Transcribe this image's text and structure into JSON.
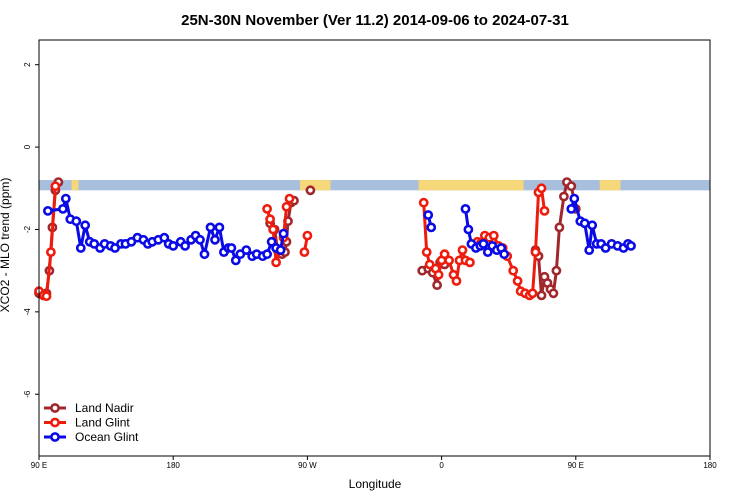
{
  "chart_data": {
    "type": "line",
    "title": "25N-30N November (Ver 11.2)   2014-09-06 to 2024-07-31",
    "xlabel": "Longitude",
    "ylabel": "XCO2 - MLO trend (ppm)",
    "xlim": [
      90,
      540
    ],
    "ylim": [
      -7.5,
      2.6
    ],
    "x_ticks": [
      {
        "value": 90,
        "label": "90 E"
      },
      {
        "value": 180,
        "label": "180"
      },
      {
        "value": 270,
        "label": "90 W"
      },
      {
        "value": 360,
        "label": "0"
      },
      {
        "value": 450,
        "label": "90 E"
      },
      {
        "value": 540,
        "label": "180"
      }
    ],
    "y_ticks": [
      {
        "value": 2,
        "label": "2"
      },
      {
        "value": 0,
        "label": "0"
      },
      {
        "value": -2,
        "label": "-2"
      },
      {
        "value": -4,
        "label": "-4"
      },
      {
        "value": -6,
        "label": "-6"
      }
    ],
    "land_mask": {
      "y_top": -0.8,
      "y_bottom": -1.05,
      "ocean_color": "#a7bedd",
      "land_color": "#f6d77a",
      "land_ranges": [
        [
          111.8,
          116.5
        ],
        [
          265,
          278
        ],
        [
          277,
          285.5
        ],
        [
          344.5,
          415
        ],
        [
          409,
          413
        ],
        [
          466,
          480
        ]
      ]
    },
    "series": [
      {
        "name": "Land Nadir",
        "color": "#a0282d",
        "segments": [
          [
            [
              90,
              -3.55
            ],
            [
              93,
              -3.6
            ],
            [
              95,
              -3.55
            ],
            [
              97,
              -3.0
            ],
            [
              99,
              -1.95
            ],
            [
              101,
              -1.05
            ],
            [
              103,
              -0.85
            ]
          ],
          [
            [
              245,
              -1.85
            ],
            [
              248,
              -2.0
            ],
            [
              250,
              -2.5
            ],
            [
              253,
              -2.6
            ],
            [
              255,
              -2.55
            ],
            [
              256,
              -2.3
            ],
            [
              257,
              -1.8
            ],
            [
              259,
              -1.35
            ],
            [
              261,
              -1.3
            ]
          ],
          [
            [
              272,
              -1.05
            ]
          ],
          [
            [
              347,
              -3.0
            ],
            [
              351,
              -2.95
            ],
            [
              354,
              -3.05
            ],
            [
              357,
              -3.35
            ],
            [
              359,
              -2.8
            ],
            [
              362,
              -2.85
            ]
          ],
          [
            [
              423,
              -2.5
            ],
            [
              425,
              -2.65
            ],
            [
              427,
              -3.6
            ],
            [
              429,
              -3.15
            ],
            [
              431,
              -3.3
            ],
            [
              433,
              -3.45
            ],
            [
              435,
              -3.55
            ],
            [
              437,
              -3.0
            ],
            [
              439,
              -1.95
            ],
            [
              442,
              -1.2
            ],
            [
              444,
              -0.85
            ],
            [
              447,
              -0.95
            ],
            [
              450,
              -1.5
            ]
          ]
        ]
      },
      {
        "name": "Land Glint",
        "color": "#ee1c0d",
        "segments": [
          [
            [
              90,
              -3.5
            ],
            [
              93,
              -3.6
            ],
            [
              95,
              -3.62
            ],
            [
              98,
              -2.55
            ],
            [
              101,
              -0.95
            ]
          ],
          [
            [
              243,
              -1.5
            ],
            [
              245,
              -1.75
            ],
            [
              247,
              -2.0
            ],
            [
              249,
              -2.8
            ],
            [
              252,
              -2.5
            ],
            [
              254,
              -2.2
            ],
            [
              256,
              -1.45
            ],
            [
              258,
              -1.25
            ]
          ],
          [
            [
              268,
              -2.55
            ],
            [
              270,
              -2.15
            ]
          ],
          [
            [
              348,
              -1.35
            ],
            [
              350,
              -2.55
            ],
            [
              352,
              -2.85
            ],
            [
              356,
              -2.95
            ],
            [
              358,
              -3.1
            ],
            [
              360,
              -2.75
            ],
            [
              362,
              -2.6
            ],
            [
              365,
              -2.75
            ],
            [
              368,
              -3.1
            ],
            [
              370,
              -3.25
            ],
            [
              372,
              -2.75
            ],
            [
              374,
              -2.5
            ],
            [
              376,
              -2.75
            ],
            [
              379,
              -2.8
            ]
          ],
          [
            [
              384,
              -2.3
            ],
            [
              386,
              -2.35
            ],
            [
              389,
              -2.15
            ],
            [
              392,
              -2.2
            ],
            [
              395,
              -2.15
            ],
            [
              398,
              -2.4
            ],
            [
              401,
              -2.45
            ],
            [
              404,
              -2.65
            ],
            [
              408,
              -3.0
            ],
            [
              411,
              -3.25
            ],
            [
              413,
              -3.5
            ],
            [
              416,
              -3.55
            ],
            [
              419,
              -3.6
            ],
            [
              421,
              -3.55
            ],
            [
              423,
              -2.55
            ],
            [
              425,
              -1.1
            ],
            [
              427,
              -1.0
            ],
            [
              429,
              -1.55
            ]
          ]
        ]
      },
      {
        "name": "Ocean Glint",
        "color": "#0a0ae6",
        "segments": [
          [
            [
              96,
              -1.55
            ],
            [
              106,
              -1.5
            ],
            [
              108,
              -1.25
            ],
            [
              111,
              -1.75
            ],
            [
              115,
              -1.8
            ],
            [
              118,
              -2.45
            ],
            [
              121,
              -1.9
            ],
            [
              124,
              -2.3
            ],
            [
              127,
              -2.35
            ],
            [
              131,
              -2.45
            ],
            [
              134,
              -2.35
            ],
            [
              138,
              -2.4
            ],
            [
              141,
              -2.45
            ],
            [
              145,
              -2.35
            ],
            [
              148,
              -2.35
            ],
            [
              152,
              -2.3
            ],
            [
              156,
              -2.2
            ],
            [
              160,
              -2.25
            ],
            [
              163,
              -2.35
            ],
            [
              166,
              -2.3
            ],
            [
              170,
              -2.25
            ],
            [
              174,
              -2.2
            ],
            [
              177,
              -2.35
            ],
            [
              180,
              -2.4
            ],
            [
              185,
              -2.3
            ],
            [
              188,
              -2.4
            ],
            [
              192,
              -2.25
            ],
            [
              195,
              -2.15
            ],
            [
              198,
              -2.25
            ],
            [
              201,
              -2.6
            ],
            [
              205,
              -1.95
            ],
            [
              208,
              -2.25
            ],
            [
              211,
              -1.95
            ],
            [
              214,
              -2.55
            ],
            [
              217,
              -2.45
            ],
            [
              219,
              -2.45
            ],
            [
              222,
              -2.75
            ],
            [
              225,
              -2.6
            ],
            [
              229,
              -2.5
            ],
            [
              233,
              -2.65
            ],
            [
              236,
              -2.6
            ],
            [
              240,
              -2.65
            ],
            [
              243,
              -2.6
            ],
            [
              246,
              -2.3
            ],
            [
              249,
              -2.45
            ],
            [
              252,
              -2.5
            ],
            [
              254,
              -2.1
            ]
          ],
          [
            [
              351,
              -1.65
            ],
            [
              353,
              -1.95
            ]
          ],
          [
            [
              376,
              -1.5
            ],
            [
              378,
              -2.0
            ],
            [
              380,
              -2.35
            ],
            [
              383,
              -2.45
            ],
            [
              386,
              -2.4
            ],
            [
              388,
              -2.35
            ],
            [
              391,
              -2.55
            ],
            [
              394,
              -2.4
            ],
            [
              397,
              -2.5
            ],
            [
              400,
              -2.45
            ],
            [
              402,
              -2.6
            ]
          ],
          [
            [
              447,
              -1.5
            ],
            [
              449,
              -1.25
            ],
            [
              453,
              -1.8
            ],
            [
              456,
              -1.85
            ],
            [
              459,
              -2.5
            ],
            [
              461,
              -1.9
            ],
            [
              464,
              -2.35
            ],
            [
              467,
              -2.35
            ],
            [
              470,
              -2.45
            ],
            [
              474,
              -2.35
            ],
            [
              478,
              -2.4
            ],
            [
              482,
              -2.45
            ],
            [
              485,
              -2.35
            ],
            [
              487,
              -2.4
            ]
          ]
        ]
      }
    ],
    "legend": {
      "position": "bottom-left",
      "entries": [
        "Land Nadir",
        "Land Glint",
        "Ocean Glint"
      ]
    },
    "grid": false
  }
}
